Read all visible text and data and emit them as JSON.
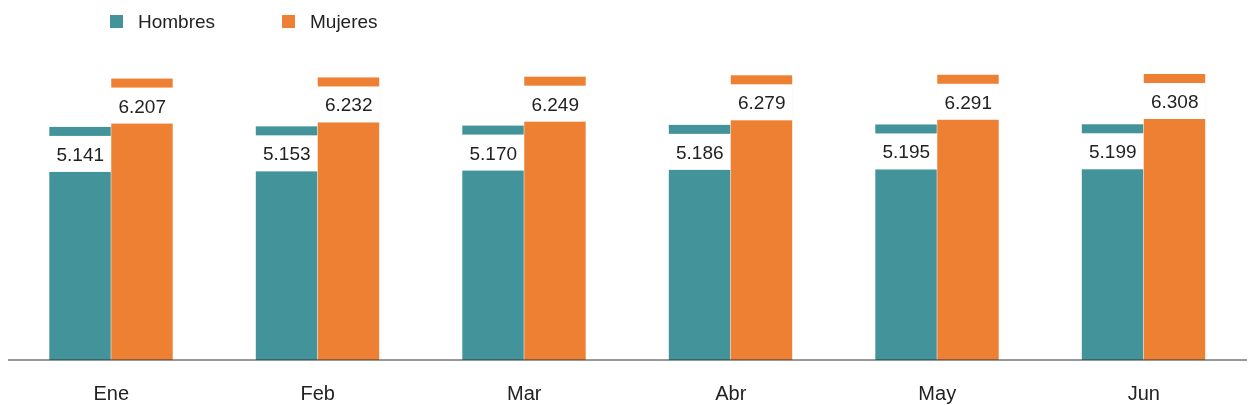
{
  "chart_data": {
    "type": "bar",
    "categories": [
      "Ene",
      "Feb",
      "Mar",
      "Abr",
      "May",
      "Jun"
    ],
    "series": [
      {
        "name": "Hombres",
        "color": "#43939b",
        "values": [
          5.141,
          5.153,
          5.17,
          5.186,
          5.195,
          5.199
        ],
        "value_labels": [
          "5.141",
          "5.153",
          "5.170",
          "5.186",
          "5.195",
          "5.199"
        ]
      },
      {
        "name": "Mujeres",
        "color": "#ee8034",
        "values": [
          6.207,
          6.232,
          6.249,
          6.279,
          6.291,
          6.308
        ],
        "value_labels": [
          "6.207",
          "6.232",
          "6.249",
          "6.279",
          "6.291",
          "6.308"
        ]
      }
    ],
    "legend": "top left"
  }
}
